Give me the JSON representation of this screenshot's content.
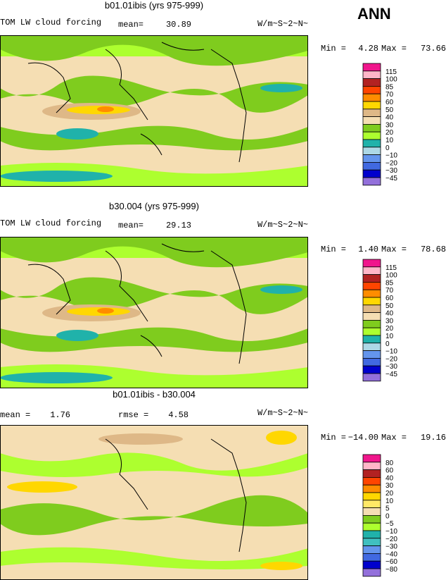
{
  "header": {
    "season": "ANN"
  },
  "panels": [
    {
      "title": "b01.01ibis (yrs 975-999)",
      "left_label": "TOM LW cloud forcing",
      "stat1_label": "mean=",
      "stat1_value": "30.89",
      "units": "W/m~S~2~N~",
      "min_label": "Min =",
      "min_value": "4.28",
      "max_label": "Max =",
      "max_value": "73.66",
      "colorbar": {
        "labels": [
          "115",
          "100",
          "85",
          "70",
          "60",
          "50",
          "40",
          "30",
          "20",
          "10",
          "0",
          "−10",
          "−20",
          "−30",
          "−45"
        ],
        "colors": [
          "#f0168c",
          "#ffb6c8",
          "#b22222",
          "#ff4500",
          "#ff8c00",
          "#ffd700",
          "#deb887",
          "#f5deb3",
          "#7fcc1e",
          "#adff2f",
          "#20b2aa",
          "#add8e6",
          "#6495ed",
          "#4169e1",
          "#0000cd",
          "#9370db"
        ]
      }
    },
    {
      "title": "b30.004 (yrs 975-999)",
      "left_label": "TOM LW cloud forcing",
      "stat1_label": "mean=",
      "stat1_value": "29.13",
      "units": "W/m~S~2~N~",
      "min_label": "Min =",
      "min_value": "1.40",
      "max_label": "Max =",
      "max_value": "78.68",
      "colorbar": {
        "labels": [
          "115",
          "100",
          "85",
          "70",
          "60",
          "50",
          "40",
          "30",
          "20",
          "10",
          "0",
          "−10",
          "−20",
          "−30",
          "−45"
        ],
        "colors": [
          "#f0168c",
          "#ffb6c8",
          "#b22222",
          "#ff4500",
          "#ff8c00",
          "#ffd700",
          "#deb887",
          "#f5deb3",
          "#7fcc1e",
          "#adff2f",
          "#20b2aa",
          "#add8e6",
          "#6495ed",
          "#4169e1",
          "#0000cd",
          "#9370db"
        ]
      }
    },
    {
      "title": "b01.01ibis - b30.004",
      "left_label": "mean =",
      "stat1_label": "rmse =",
      "stat1_value": "4.58",
      "left_value": "1.76",
      "units": "W/m~S~2~N~",
      "min_label": "Min =",
      "min_value": "−14.00",
      "max_label": "Max =",
      "max_value": "19.16",
      "colorbar": {
        "labels": [
          "80",
          "60",
          "40",
          "30",
          "20",
          "10",
          "5",
          "0",
          "−5",
          "−10",
          "−20",
          "−30",
          "−40",
          "−60",
          "−80"
        ],
        "colors": [
          "#f0168c",
          "#ffb6c8",
          "#b22222",
          "#ff4500",
          "#ff8c00",
          "#ffd700",
          "#ffe866",
          "#f5deb3",
          "#7fcc1e",
          "#adff2f",
          "#20b2aa",
          "#40c0c0",
          "#6495ed",
          "#4169e1",
          "#0000cd",
          "#9370db"
        ]
      }
    }
  ]
}
